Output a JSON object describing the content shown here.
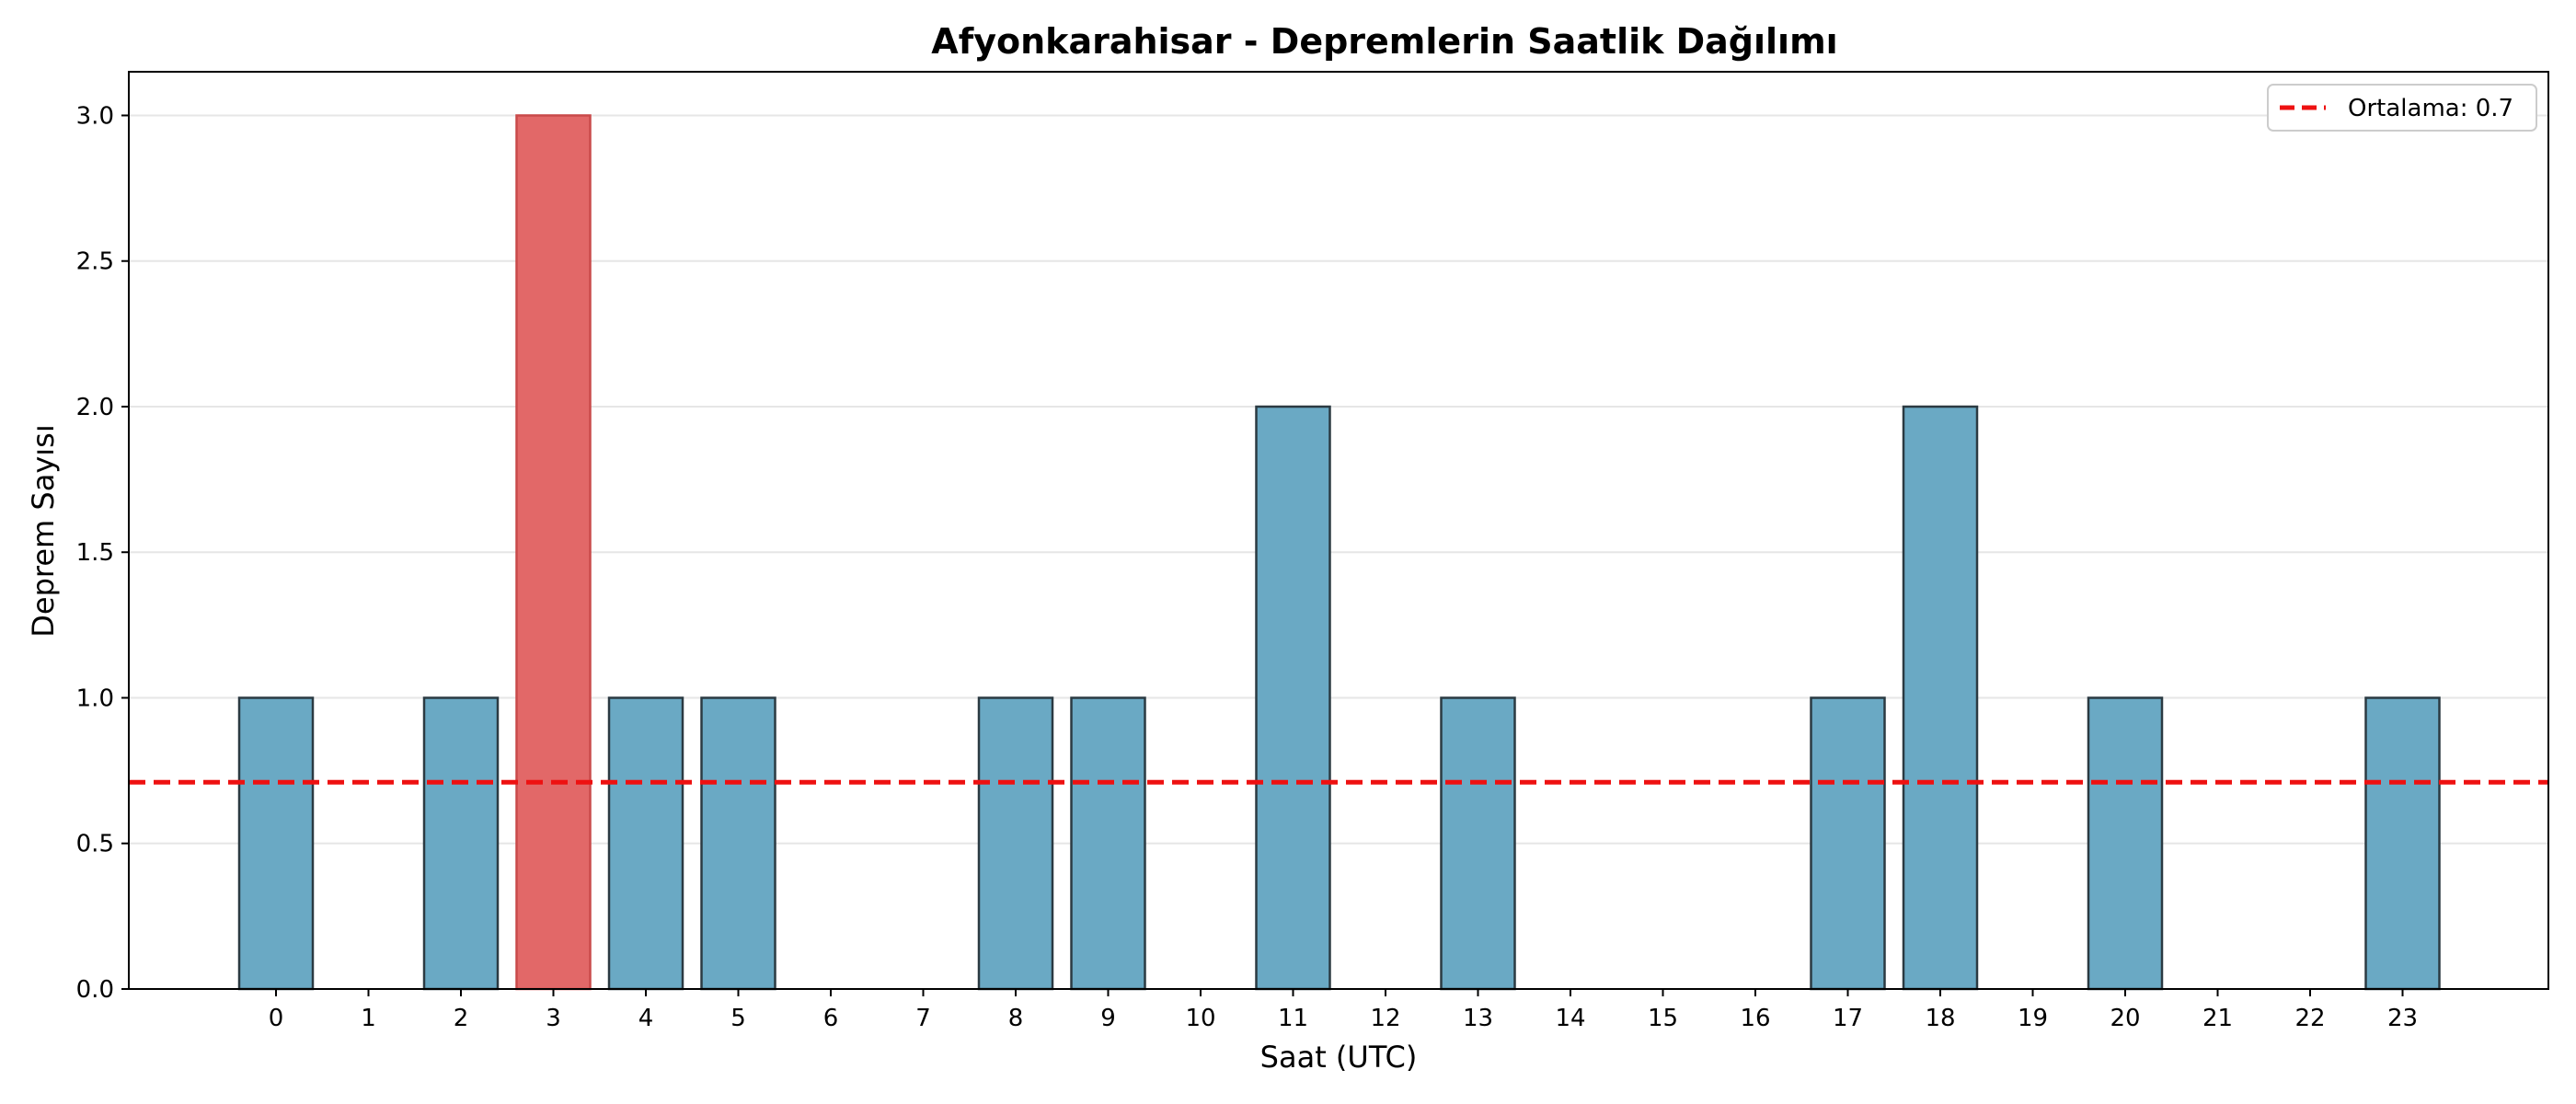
{
  "chart_data": {
    "type": "bar",
    "title": "Afyonkarahisar - Depremlerin Saatlik Dağılımı",
    "xlabel": "Saat (UTC)",
    "ylabel": "Deprem Sayısı",
    "categories": [
      "0",
      "1",
      "2",
      "3",
      "4",
      "5",
      "6",
      "7",
      "8",
      "9",
      "10",
      "11",
      "12",
      "13",
      "14",
      "15",
      "16",
      "17",
      "18",
      "19",
      "20",
      "21",
      "22",
      "23"
    ],
    "values": [
      1,
      0,
      1,
      3,
      1,
      1,
      0,
      0,
      1,
      1,
      0,
      2,
      0,
      1,
      0,
      0,
      0,
      1,
      2,
      0,
      1,
      0,
      0,
      1
    ],
    "ylim": [
      0,
      3.15
    ],
    "yticks": [
      "0.0",
      "0.5",
      "1.0",
      "1.5",
      "2.0",
      "2.5",
      "3.0"
    ],
    "highlight_index": 3,
    "mean_line": {
      "value": 0.71,
      "label": "Ortalama: 0.7"
    },
    "grid": "y",
    "legend_position": "top-right",
    "colors": {
      "bar": "#6aa9c4",
      "highlight": "#e26868",
      "bar_edge": "#2b3a42",
      "mean_line": "#ee1111",
      "grid": "#e6e6e6"
    }
  }
}
